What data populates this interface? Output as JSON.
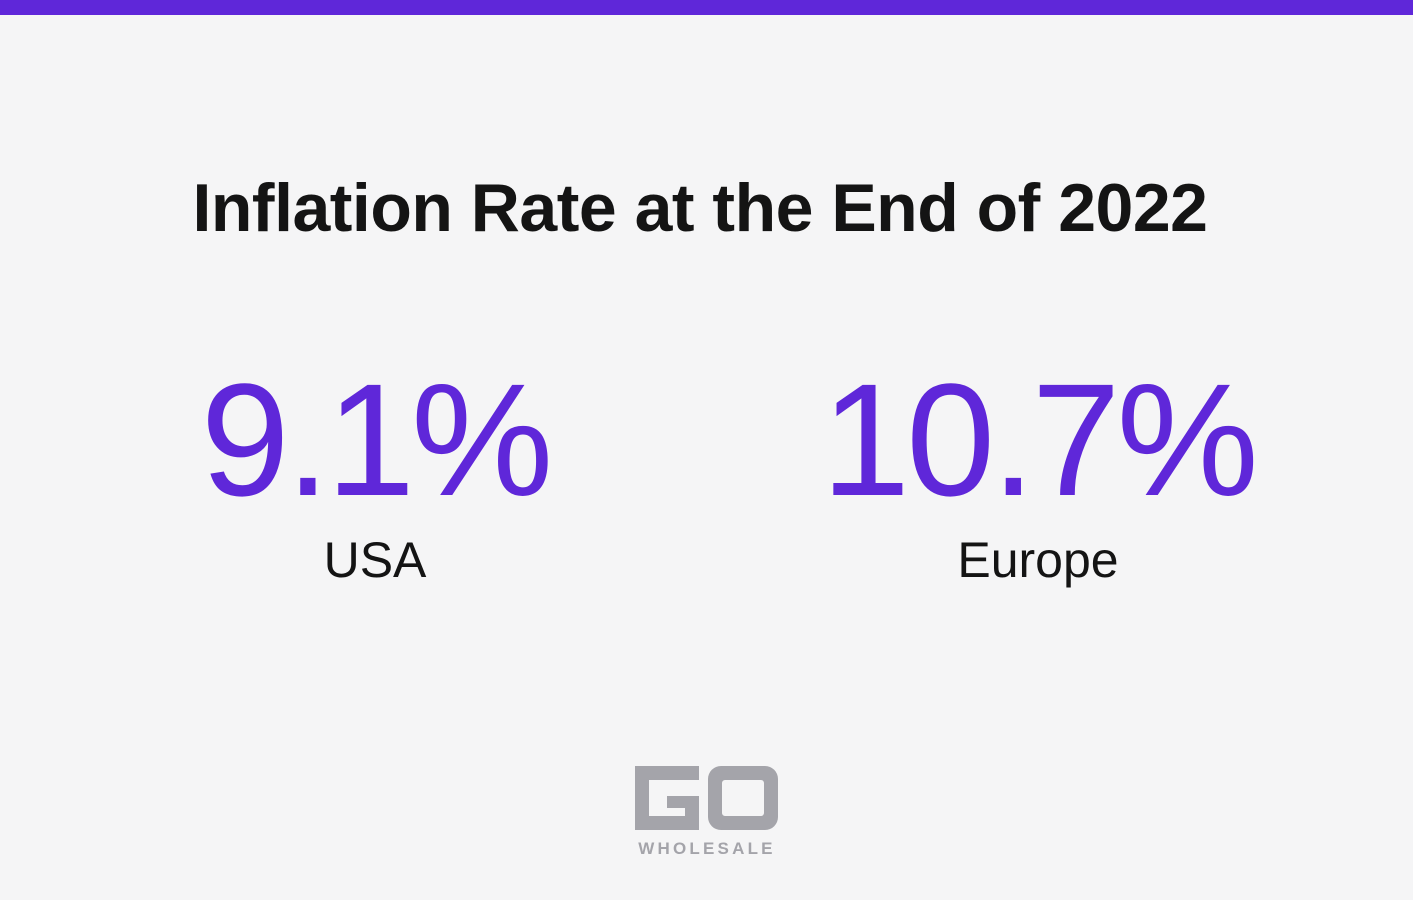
{
  "colors": {
    "accent": "#5f27d9",
    "background": "#f5f5f6",
    "text": "#141414",
    "logo": "#a4a4aa"
  },
  "title": "Inflation Rate at the End of 2022",
  "stats": [
    {
      "value": "9.1%",
      "label": "USA"
    },
    {
      "value": "10.7%",
      "label": "Europe"
    }
  ],
  "logo": {
    "mark": "GO",
    "wordmark": "WHOLESALE"
  }
}
